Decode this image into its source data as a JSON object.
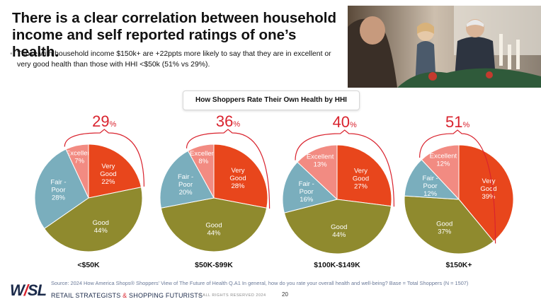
{
  "slide": {
    "title": "There is a clear correlation between household income and self reported ratings of one’s health.",
    "bullet_marker": "•",
    "bullet": "Those with household income $150k+ are +22ppts more likely to say that they are in excellent or very good health than those with HHI <$50k (51% vs 29%).",
    "source": "Source: 2024 How America Shops® Shoppers’ View of The Future of Health Q.A1 In general, how do you rate your overall health and well-being? Base = Total Shoppers (N = 1507)",
    "rights": "© ALL RIGHTS RESERVED 2024",
    "page_number": "20"
  },
  "logo": {
    "letters_a": "W",
    "letters_slash": "/",
    "letters_b": "SL",
    "tagline_a": "RETAIL STRATEGISTS ",
    "tagline_amp": "&",
    "tagline_b": " SHOPPING FUTURISTS"
  },
  "colors": {
    "excellent": "#f28b82",
    "very_good": "#e8461c",
    "good": "#8f8a2e",
    "fair_poor": "#7aaebd",
    "highlight": "#d9232e"
  },
  "chart_data": {
    "type": "pie",
    "title": "How Shoppers Rate Their Own Health by HHI",
    "series_order": [
      "Excellent",
      "Very Good",
      "Good",
      "Fair - Poor"
    ],
    "pies": [
      {
        "category": "<$50K",
        "excellent_plus_very_good": 29,
        "values": {
          "Excellent": 7,
          "Very Good": 22,
          "Good": 44,
          "Fair - Poor": 28
        }
      },
      {
        "category": "$50K-$99K",
        "excellent_plus_very_good": 36,
        "values": {
          "Excellent": 8,
          "Very Good": 28,
          "Good": 44,
          "Fair - Poor": 20
        }
      },
      {
        "category": "$100K-$149K",
        "excellent_plus_very_good": 40,
        "values": {
          "Excellent": 13,
          "Very Good": 27,
          "Good": 44,
          "Fair - Poor": 16
        }
      },
      {
        "category": "$150K+",
        "excellent_plus_very_good": 51,
        "values": {
          "Excellent": 12,
          "Very Good": 39,
          "Good": 37,
          "Fair - Poor": 12
        }
      }
    ],
    "pct_suffix": "%"
  }
}
